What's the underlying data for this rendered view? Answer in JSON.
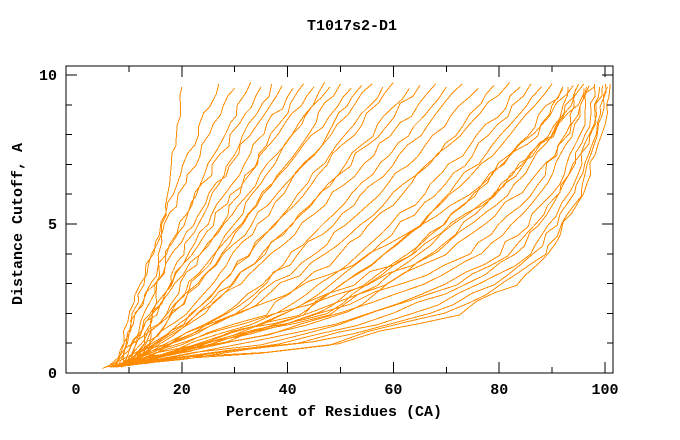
{
  "chart_data": {
    "type": "line",
    "title": "T1017s2-D1",
    "xlabel": "Percent of Residues (CA)",
    "ylabel": "Distance Cutoff, A",
    "xlim": [
      0,
      102
    ],
    "ylim": [
      0,
      10.3
    ],
    "grid": false,
    "legend": "none",
    "background": "#FFFFFF",
    "axis_color": "#000000",
    "line_color": "#FF8C00",
    "wiggle_pct": 0.55,
    "x_major_tick_marks": [
      20,
      40,
      60,
      80,
      100
    ],
    "x_minor_tick_marks": [
      10,
      30,
      50,
      70,
      90
    ],
    "x_axis_labels": [
      {
        "v": 0,
        "t": "0"
      },
      {
        "v": 20,
        "t": "20"
      },
      {
        "v": 40,
        "t": "40"
      },
      {
        "v": 60,
        "t": "60"
      },
      {
        "v": 80,
        "t": "80"
      },
      {
        "v": 100,
        "t": "100"
      }
    ],
    "y_major_tick_marks": [
      5,
      10
    ],
    "y_minor_tick_marks": [
      1,
      2,
      3,
      4,
      6,
      7,
      8,
      9
    ],
    "y_axis_labels": [
      {
        "v": 0,
        "t": "0"
      },
      {
        "v": 5,
        "t": "5"
      },
      {
        "v": 10,
        "t": "10"
      }
    ],
    "point_format": [
      "percent_residues",
      "distance_cutoff_A"
    ],
    "curves": [
      [
        [
          13.5,
          0.3
        ],
        [
          14.5,
          2
        ],
        [
          15.9,
          4
        ],
        [
          17.3,
          6
        ],
        [
          18.8,
          8
        ],
        [
          20,
          9.6
        ]
      ],
      [
        [
          9,
          0.25
        ],
        [
          10.9,
          2
        ],
        [
          14.3,
          4
        ],
        [
          18.3,
          6
        ],
        [
          22.9,
          8
        ],
        [
          27,
          9.7
        ]
      ],
      [
        [
          7.5,
          0.2
        ],
        [
          10.2,
          2
        ],
        [
          14.5,
          4
        ],
        [
          19.5,
          6
        ],
        [
          25.1,
          8
        ],
        [
          30,
          9.55
        ]
      ],
      [
        [
          10,
          0.3
        ],
        [
          12.9,
          2
        ],
        [
          17.4,
          4
        ],
        [
          22.5,
          6
        ],
        [
          28,
          8
        ],
        [
          33,
          9.75
        ]
      ],
      [
        [
          8,
          0.25
        ],
        [
          11.7,
          2
        ],
        [
          17,
          4
        ],
        [
          23,
          6
        ],
        [
          29.4,
          8
        ],
        [
          35,
          9.6
        ]
      ],
      [
        [
          11,
          0.3
        ],
        [
          14.9,
          2
        ],
        [
          20.1,
          4
        ],
        [
          25.8,
          6
        ],
        [
          31.9,
          8
        ],
        [
          37,
          9.7
        ]
      ],
      [
        [
          6.5,
          0.2
        ],
        [
          11.7,
          2
        ],
        [
          18.4,
          4
        ],
        [
          25.5,
          6
        ],
        [
          32.8,
          8
        ],
        [
          39,
          9.65
        ]
      ],
      [
        [
          9,
          0.25
        ],
        [
          14.6,
          2
        ],
        [
          21.3,
          4
        ],
        [
          28.2,
          6
        ],
        [
          35.2,
          8
        ],
        [
          41,
          9.55
        ]
      ],
      [
        [
          10.5,
          0.3
        ],
        [
          16.7,
          2
        ],
        [
          23.6,
          4
        ],
        [
          30.5,
          6
        ],
        [
          37.3,
          8
        ],
        [
          43,
          9.7
        ]
      ],
      [
        [
          8,
          0.2
        ],
        [
          14,
          2
        ],
        [
          21.6,
          4
        ],
        [
          29.6,
          6
        ],
        [
          38,
          8
        ],
        [
          45,
          9.6
        ]
      ],
      [
        [
          11,
          0.3
        ],
        [
          18.5,
          2
        ],
        [
          26.1,
          4
        ],
        [
          33.7,
          6
        ],
        [
          41,
          8
        ],
        [
          47,
          9.75
        ]
      ],
      [
        [
          7,
          0.2
        ],
        [
          14.8,
          2
        ],
        [
          23.5,
          4
        ],
        [
          32.2,
          6
        ],
        [
          40.8,
          8
        ],
        [
          48,
          9.6
        ]
      ],
      [
        [
          9.5,
          0.25
        ],
        [
          18.6,
          2
        ],
        [
          27.3,
          4
        ],
        [
          35.6,
          6
        ],
        [
          43.6,
          8
        ],
        [
          50,
          9.7
        ]
      ],
      [
        [
          8,
          0.2
        ],
        [
          17.1,
          2
        ],
        [
          26.5,
          4
        ],
        [
          35.7,
          6
        ],
        [
          44.7,
          8
        ],
        [
          52,
          9.55
        ]
      ],
      [
        [
          10,
          0.3
        ],
        [
          20.8,
          2
        ],
        [
          30.2,
          4
        ],
        [
          39,
          6
        ],
        [
          47.4,
          8
        ],
        [
          54,
          9.65
        ]
      ],
      [
        [
          6,
          0.2
        ],
        [
          17.3,
          2
        ],
        [
          28,
          4
        ],
        [
          38.3,
          6
        ],
        [
          48.1,
          8
        ],
        [
          56,
          9.7
        ]
      ],
      [
        [
          9,
          0.25
        ],
        [
          22,
          2
        ],
        [
          32.6,
          4
        ],
        [
          42.2,
          6
        ],
        [
          51,
          8
        ],
        [
          58,
          9.6
        ]
      ],
      [
        [
          11,
          0.3
        ],
        [
          22,
          2
        ],
        [
          32.6,
          4
        ],
        [
          42.6,
          6
        ],
        [
          52.2,
          8
        ],
        [
          60,
          9.75
        ]
      ],
      [
        [
          7.5,
          0.2
        ],
        [
          23.6,
          2
        ],
        [
          35.5,
          4
        ],
        [
          46.1,
          6
        ],
        [
          55.6,
          8
        ],
        [
          63,
          9.55
        ]
      ],
      [
        [
          10,
          0.25
        ],
        [
          23.5,
          2
        ],
        [
          35.3,
          4
        ],
        [
          46.3,
          6
        ],
        [
          56.7,
          8
        ],
        [
          65,
          9.65
        ]
      ],
      [
        [
          8.5,
          0.2
        ],
        [
          24.3,
          2
        ],
        [
          37.2,
          4
        ],
        [
          48.8,
          6
        ],
        [
          59.5,
          8
        ],
        [
          68,
          9.7
        ]
      ],
      [
        [
          9,
          0.25
        ],
        [
          28.1,
          2
        ],
        [
          41.2,
          4
        ],
        [
          52.3,
          6
        ],
        [
          62.3,
          8
        ],
        [
          70,
          9.6
        ]
      ],
      [
        [
          11,
          0.3
        ],
        [
          29,
          2
        ],
        [
          42.3,
          4
        ],
        [
          54.1,
          6
        ],
        [
          64.7,
          8
        ],
        [
          73,
          9.7
        ]
      ],
      [
        [
          7,
          0.2
        ],
        [
          30.5,
          2
        ],
        [
          45.2,
          4
        ],
        [
          57.2,
          6
        ],
        [
          67.9,
          8
        ],
        [
          76,
          9.55
        ]
      ],
      [
        [
          10,
          0.25
        ],
        [
          35.5,
          2
        ],
        [
          50,
          4
        ],
        [
          61.5,
          6
        ],
        [
          71.5,
          8
        ],
        [
          79,
          9.65
        ]
      ],
      [
        [
          8,
          0.2
        ],
        [
          31.2,
          2
        ],
        [
          47.1,
          4
        ],
        [
          60.5,
          6
        ],
        [
          72.7,
          8
        ],
        [
          82,
          9.75
        ]
      ],
      [
        [
          12,
          0.3
        ],
        [
          38.6,
          2
        ],
        [
          53.7,
          4
        ],
        [
          65.7,
          6
        ],
        [
          76.1,
          8
        ],
        [
          84,
          9.6
        ]
      ],
      [
        [
          9,
          0.25
        ],
        [
          40,
          2
        ],
        [
          55.7,
          4
        ],
        [
          67.9,
          6
        ],
        [
          78.3,
          8
        ],
        [
          86,
          9.7
        ]
      ],
      [
        [
          8,
          0.2
        ],
        [
          43,
          2
        ],
        [
          58.7,
          4
        ],
        [
          70.6,
          6
        ],
        [
          80.6,
          8
        ],
        [
          88,
          9.6
        ]
      ],
      [
        [
          10,
          0.25
        ],
        [
          42.2,
          2
        ],
        [
          58.5,
          4
        ],
        [
          71.2,
          6
        ],
        [
          82,
          8
        ],
        [
          90,
          9.7
        ]
      ],
      [
        [
          7,
          0.2
        ],
        [
          47.3,
          2
        ],
        [
          63.4,
          4
        ],
        [
          75.3,
          6
        ],
        [
          84.9,
          8
        ],
        [
          92,
          9.55
        ]
      ],
      [
        [
          9,
          0.25
        ],
        [
          46.1,
          2
        ],
        [
          62.9,
          4
        ],
        [
          75.6,
          6
        ],
        [
          86.2,
          8
        ],
        [
          94,
          9.65
        ]
      ],
      [
        [
          11,
          0.3
        ],
        [
          51.3,
          2
        ],
        [
          67.4,
          4
        ],
        [
          79.3,
          6
        ],
        [
          88.9,
          8
        ],
        [
          96,
          9.7
        ]
      ],
      [
        [
          8.5,
          0.2
        ],
        [
          47.6,
          2
        ],
        [
          65.2,
          4
        ],
        [
          78.6,
          6
        ],
        [
          89.8,
          8
        ],
        [
          98,
          9.6
        ]
      ],
      [
        [
          6,
          0.2
        ],
        [
          20,
          1
        ],
        [
          38,
          2
        ],
        [
          55,
          3
        ],
        [
          68,
          4
        ],
        [
          82,
          6
        ],
        [
          90,
          8
        ],
        [
          93,
          9.6
        ]
      ],
      [
        [
          8,
          0.25
        ],
        [
          26,
          1
        ],
        [
          46,
          2
        ],
        [
          62,
          3
        ],
        [
          74,
          4
        ],
        [
          86,
          6
        ],
        [
          92.5,
          8
        ],
        [
          95,
          9.7
        ]
      ],
      [
        [
          10,
          0.3
        ],
        [
          30,
          1
        ],
        [
          50,
          2
        ],
        [
          66,
          3
        ],
        [
          77,
          4
        ],
        [
          88,
          6
        ],
        [
          94,
          8
        ],
        [
          96,
          9.55
        ]
      ],
      [
        [
          7,
          0.2
        ],
        [
          34,
          1
        ],
        [
          56,
          2
        ],
        [
          70,
          3
        ],
        [
          80,
          4
        ],
        [
          90,
          6
        ],
        [
          95.5,
          8
        ],
        [
          97,
          9.65
        ]
      ],
      [
        [
          9,
          0.25
        ],
        [
          38,
          1
        ],
        [
          60,
          2
        ],
        [
          74,
          3
        ],
        [
          83,
          4
        ],
        [
          91.5,
          6
        ],
        [
          96.5,
          8
        ],
        [
          98,
          9.7
        ]
      ],
      [
        [
          5.5,
          0.2
        ],
        [
          42,
          1
        ],
        [
          64,
          2
        ],
        [
          77,
          3
        ],
        [
          85.5,
          4
        ],
        [
          93,
          6
        ],
        [
          97.5,
          8
        ],
        [
          99,
          9.6
        ]
      ],
      [
        [
          8.5,
          0.25
        ],
        [
          45,
          1
        ],
        [
          67,
          2
        ],
        [
          79,
          3
        ],
        [
          87,
          4
        ],
        [
          94,
          6
        ],
        [
          98.5,
          8
        ],
        [
          100,
          9.7
        ]
      ],
      [
        [
          7.5,
          0.2
        ],
        [
          48,
          1
        ],
        [
          70,
          2
        ],
        [
          81.5,
          3
        ],
        [
          88.5,
          4
        ],
        [
          95,
          6
        ],
        [
          99,
          8
        ],
        [
          100.5,
          9.6
        ]
      ],
      [
        [
          10.5,
          0.3
        ],
        [
          35,
          1
        ],
        [
          57,
          2
        ],
        [
          72,
          3
        ],
        [
          82,
          4
        ],
        [
          91,
          6
        ],
        [
          97,
          8
        ],
        [
          99.5,
          9.65
        ]
      ],
      [
        [
          6.5,
          0.2
        ],
        [
          50,
          1
        ],
        [
          72,
          2
        ],
        [
          83,
          3
        ],
        [
          89.5,
          4
        ],
        [
          95.5,
          6
        ],
        [
          99.5,
          8
        ],
        [
          101,
          9.7
        ]
      ],
      [
        [
          9,
          0.25
        ],
        [
          28,
          1
        ],
        [
          44,
          2
        ],
        [
          58,
          3
        ],
        [
          70,
          4
        ],
        [
          84,
          6
        ],
        [
          93,
          8
        ],
        [
          96.5,
          9.6
        ]
      ],
      [
        [
          11,
          0.3
        ],
        [
          24,
          1
        ],
        [
          40,
          2
        ],
        [
          52,
          3
        ],
        [
          64,
          4
        ],
        [
          79,
          6
        ],
        [
          90,
          8
        ],
        [
          94.5,
          9.55
        ]
      ],
      [
        [
          5,
          0.15
        ],
        [
          16,
          1
        ],
        [
          30,
          2
        ],
        [
          44,
          3
        ],
        [
          56,
          4
        ],
        [
          74,
          6
        ],
        [
          87,
          8
        ],
        [
          92,
          9.6
        ]
      ]
    ]
  }
}
